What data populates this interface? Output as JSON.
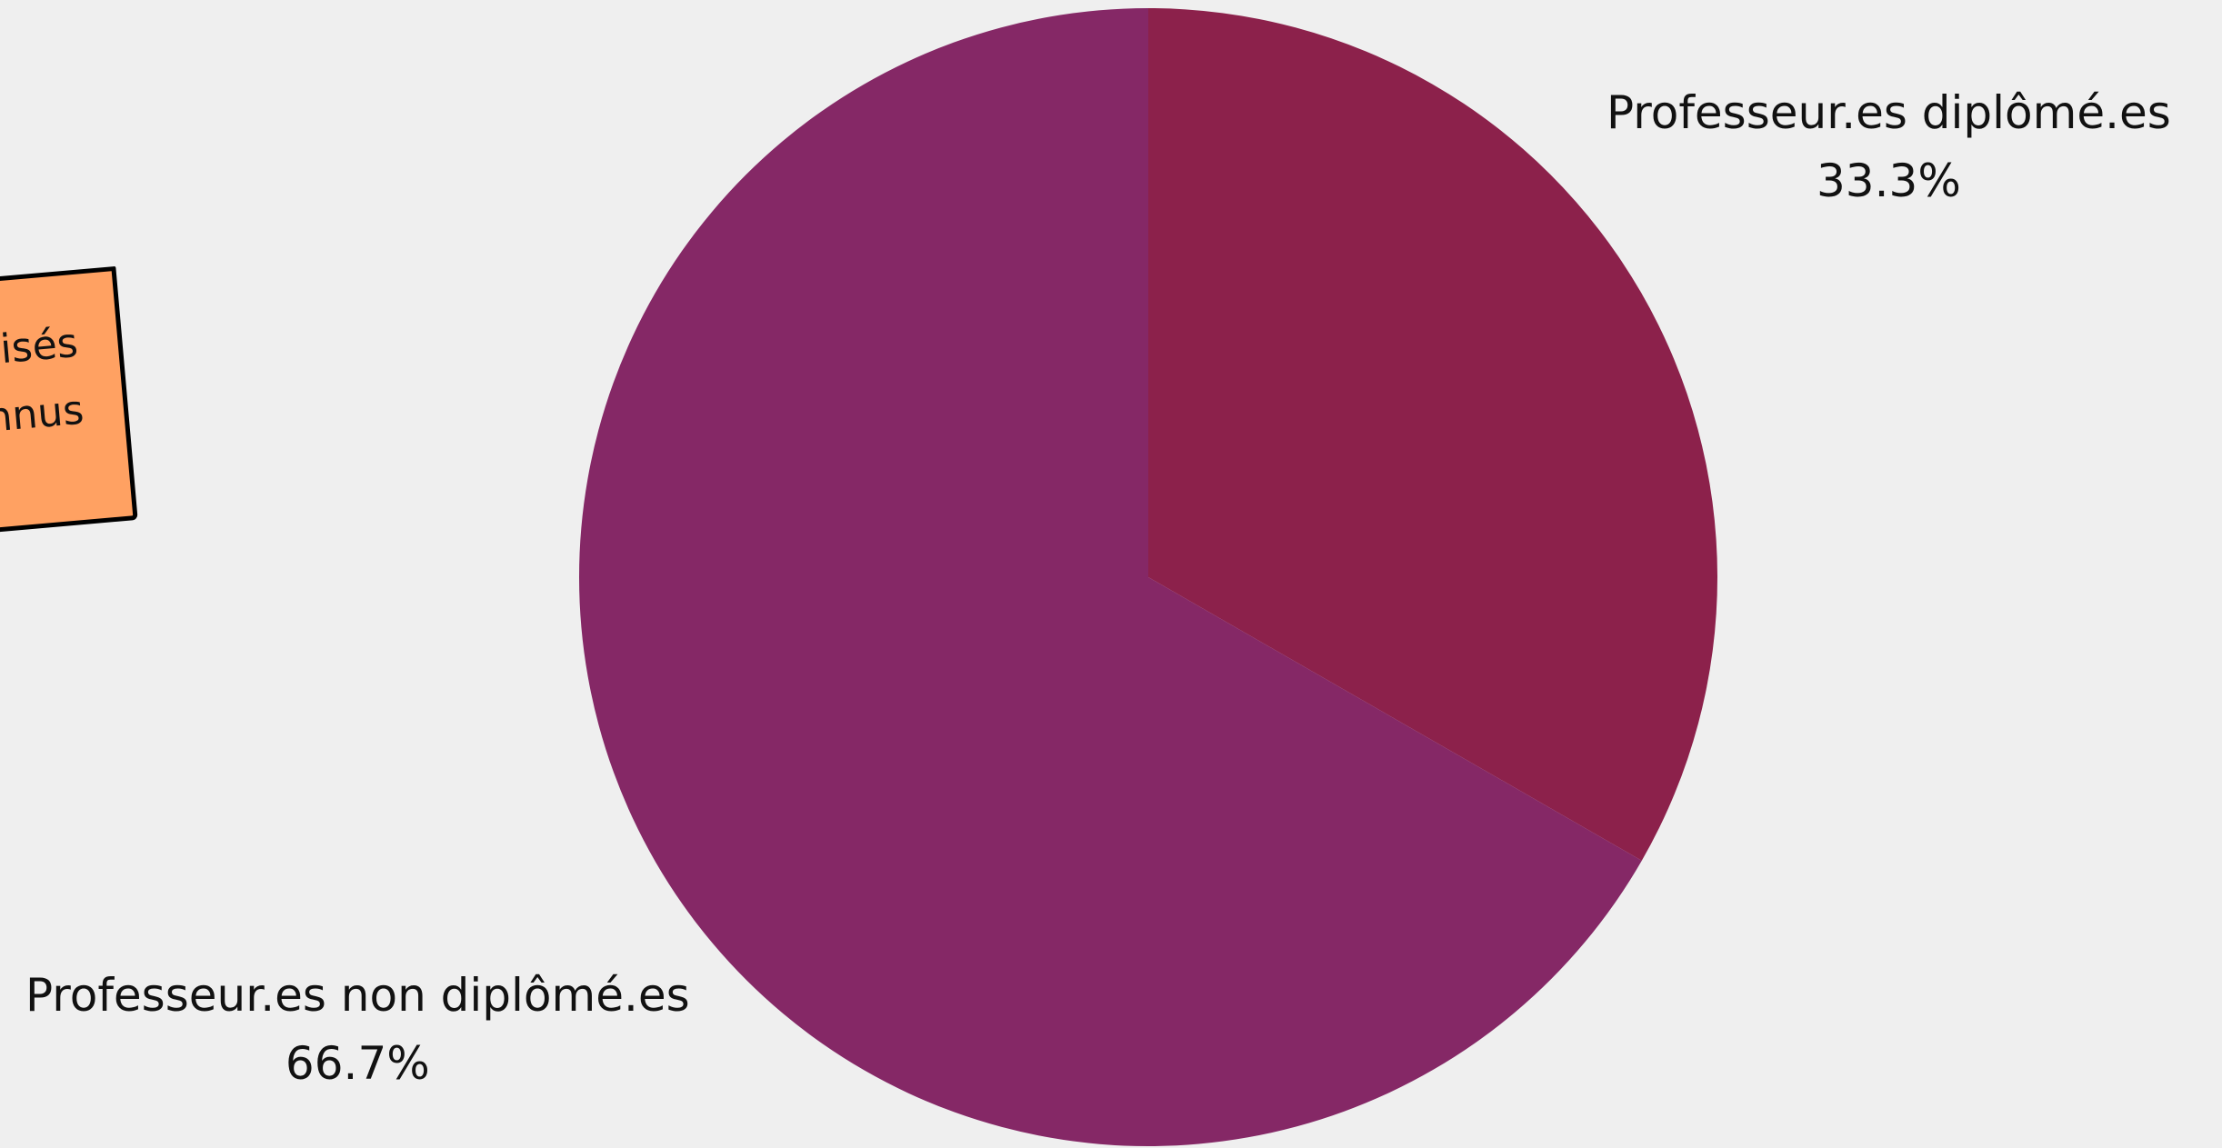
{
  "chart_data": {
    "type": "pie",
    "title": "",
    "start_angle_deg": 0,
    "direction": "clockwise",
    "slices": [
      {
        "label": "Professeur.es diplômé.es",
        "value": 33.3,
        "pct_text": "33.3%",
        "color": "#8c214b"
      },
      {
        "label": "Professeur.es non diplômé.es",
        "value": 66.7,
        "pct_text": "66.7%",
        "color": "#852866"
      }
    ]
  },
  "sticky_note": {
    "color": "#ffa162",
    "lines": [
      "isés",
      "nnus"
    ]
  }
}
